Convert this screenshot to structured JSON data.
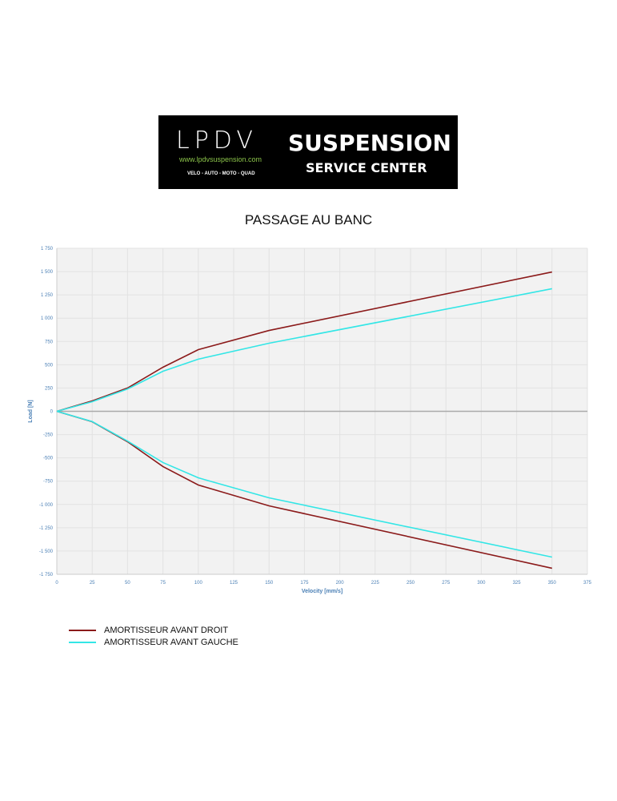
{
  "logo": {
    "brand": "LPDV",
    "url": "www.lpdvsuspension.com",
    "categories": "VELO - AUTO - MOTO - QUAD",
    "line1": "SUSPENSION",
    "line2": "SERVICE CENTER"
  },
  "title": "PASSAGE AU BANC",
  "chart_data": {
    "type": "line",
    "title": "PASSAGE AU BANC",
    "xlabel": "Velocity [mm/s]",
    "ylabel": "Load [N]",
    "xlim": [
      0,
      375
    ],
    "ylim": [
      -1750,
      1750
    ],
    "xticks": [
      "0",
      "25",
      "50",
      "75",
      "100",
      "125",
      "150",
      "175",
      "200",
      "225",
      "250",
      "275",
      "300",
      "325",
      "350",
      "375"
    ],
    "yticks": [
      "1 750",
      "1 500",
      "1 250",
      "1 000",
      "750",
      "500",
      "250",
      "0",
      "-250",
      "-500",
      "-750",
      "-1 000",
      "-1 250",
      "-1 500",
      "-1 750"
    ],
    "grid": true,
    "legend_position": "bottom-left",
    "x": [
      0,
      25,
      50,
      75,
      100,
      150,
      350
    ],
    "series": [
      {
        "name": "AMORTISSEUR AVANT DROIT",
        "color": "#8b1a1a",
        "compression": [
          0,
          112,
          250,
          473,
          662,
          868,
          1496
        ],
        "rebound": [
          0,
          -112,
          -327,
          -593,
          -791,
          -1015,
          -1685
        ]
      },
      {
        "name": "AMORTISSEUR AVANT GAUCHE",
        "color": "#33e6e6",
        "compression": [
          0,
          103,
          240,
          430,
          560,
          731,
          1316
        ],
        "rebound": [
          0,
          -110,
          -320,
          -550,
          -714,
          -929,
          -1565
        ]
      }
    ]
  }
}
